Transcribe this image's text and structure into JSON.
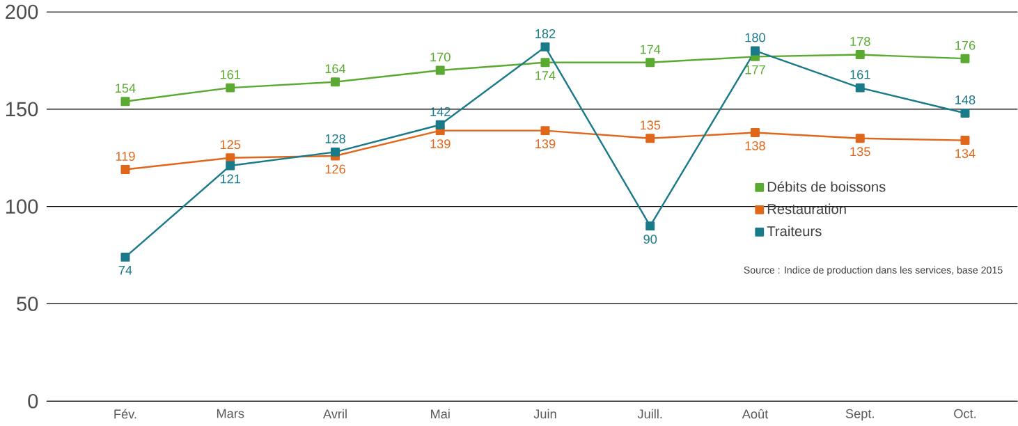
{
  "chart_data": {
    "type": "line",
    "categories": [
      "Fév.",
      "Mars",
      "Avril",
      "Mai",
      "Juin",
      "Juill.",
      "Août",
      "Sept.",
      "Oct."
    ],
    "series": [
      {
        "name": "Débits de boissons",
        "color": "#5aaa32",
        "values": [
          154,
          161,
          164,
          170,
          174,
          174,
          177,
          178,
          176
        ]
      },
      {
        "name": "Restauration",
        "color": "#e0661a",
        "values": [
          119,
          125,
          126,
          139,
          139,
          135,
          138,
          135,
          134
        ]
      },
      {
        "name": "Traiteurs",
        "color": "#1a7a8a",
        "values": [
          74,
          121,
          128,
          142,
          182,
          90,
          180,
          161,
          148
        ]
      }
    ],
    "ylim": [
      0,
      200
    ],
    "yticks": [
      0,
      50,
      100,
      150,
      200
    ],
    "grid": "y",
    "legend": "center right",
    "marker": "square",
    "data_labels": true,
    "annotations": [
      "Source : Indice de production dans les services, base 2015"
    ]
  }
}
